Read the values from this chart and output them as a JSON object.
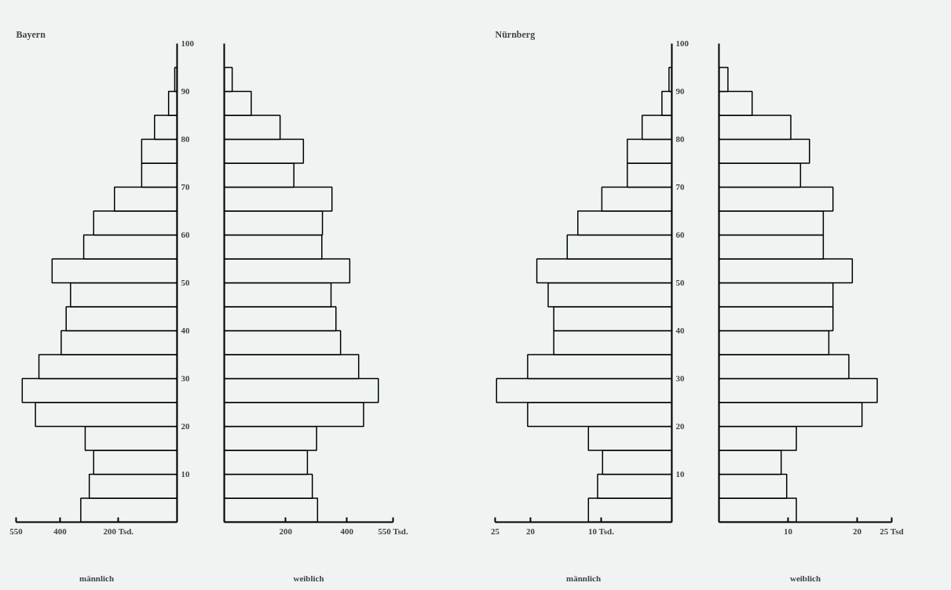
{
  "chart_data": [
    {
      "type": "bar",
      "orientation": "horizontal",
      "title": "Bayern",
      "xlabel": "männlich",
      "x": [
        2.5,
        7.5,
        12.5,
        17.5,
        22.5,
        27.5,
        32.5,
        37.5,
        42.5,
        47.5,
        52.5,
        57.5,
        62.5,
        67.5,
        72.5,
        77.5,
        82.5,
        87.5,
        92.5
      ],
      "values": [
        329,
        300,
        285,
        314,
        484,
        529,
        472,
        396,
        379,
        364,
        427,
        319,
        285,
        214,
        121,
        121,
        77,
        29,
        8
      ],
      "color": "#eff4f2",
      "xlim": [
        550,
        0
      ],
      "xticks": [
        550,
        400,
        {
          "value": 200,
          "label": "200 Tsd."
        }
      ],
      "ylim": [
        0,
        100
      ],
      "yticks": [
        10,
        20,
        30,
        40,
        50,
        60,
        70,
        80,
        90,
        100
      ]
    },
    {
      "type": "bar",
      "orientation": "horizontal",
      "xlabel": "weiblich",
      "x": [
        2.5,
        7.5,
        12.5,
        17.5,
        22.5,
        27.5,
        32.5,
        37.5,
        42.5,
        47.5,
        52.5,
        57.5,
        62.5,
        67.5,
        72.5,
        77.5,
        82.5,
        87.5,
        92.5
      ],
      "values": [
        304,
        287,
        271,
        301,
        454,
        502,
        438,
        379,
        364,
        348,
        409,
        318,
        320,
        351,
        227,
        258,
        182,
        88,
        26
      ],
      "color": "#eff4f2",
      "xlim": [
        0,
        550
      ],
      "xticks": [
        200,
        400,
        {
          "value": 550,
          "label": "550 Tsd."
        }
      ],
      "ylim": [
        0,
        100
      ],
      "yticks": [
        10,
        20,
        30,
        40,
        50,
        60,
        70,
        80,
        90,
        100
      ],
      "tick_labels": "x"
    },
    {
      "type": "bar",
      "orientation": "horizontal",
      "title": "Nürnberg",
      "xlabel": "männlich",
      "x": [
        2.5,
        7.5,
        12.5,
        17.5,
        22.5,
        27.5,
        32.5,
        37.5,
        42.5,
        47.5,
        52.5,
        57.5,
        62.5,
        67.5,
        72.5,
        77.5,
        82.5,
        87.5,
        92.5
      ],
      "values": [
        11.8,
        10.5,
        9.8,
        11.8,
        20.4,
        24.8,
        20.4,
        16.7,
        16.7,
        17.5,
        19.1,
        14.8,
        13.3,
        9.9,
        6.3,
        6.3,
        4.2,
        1.4,
        0.4
      ],
      "color": "#eff4f2",
      "xlim": [
        25,
        0
      ],
      "xticks": [
        25,
        20,
        {
          "value": 10,
          "label": "10 Tsd."
        }
      ],
      "ylim": [
        0,
        100
      ],
      "yticks": [
        10,
        20,
        30,
        40,
        50,
        60,
        70,
        80,
        90,
        100
      ]
    },
    {
      "type": "bar",
      "orientation": "horizontal",
      "xlabel": "weiblich",
      "x": [
        2.5,
        7.5,
        12.5,
        17.5,
        22.5,
        27.5,
        32.5,
        37.5,
        42.5,
        47.5,
        52.5,
        57.5,
        62.5,
        67.5,
        72.5,
        77.5,
        82.5,
        87.5,
        92.5
      ],
      "values": [
        11.2,
        9.8,
        9.0,
        11.2,
        20.7,
        22.9,
        18.8,
        15.9,
        16.5,
        16.5,
        19.3,
        15.1,
        15.1,
        16.5,
        11.8,
        13.1,
        10.4,
        4.8,
        1.3
      ],
      "color": "#eff4f2",
      "xlim": [
        0,
        25
      ],
      "xticks": [
        10,
        20,
        {
          "value": 25,
          "label": "25 Tsd"
        }
      ],
      "ylim": [
        0,
        100
      ],
      "yticks": [
        10,
        20,
        30,
        40,
        50,
        60,
        70,
        80,
        90,
        100
      ],
      "tick_labels": "x"
    }
  ]
}
